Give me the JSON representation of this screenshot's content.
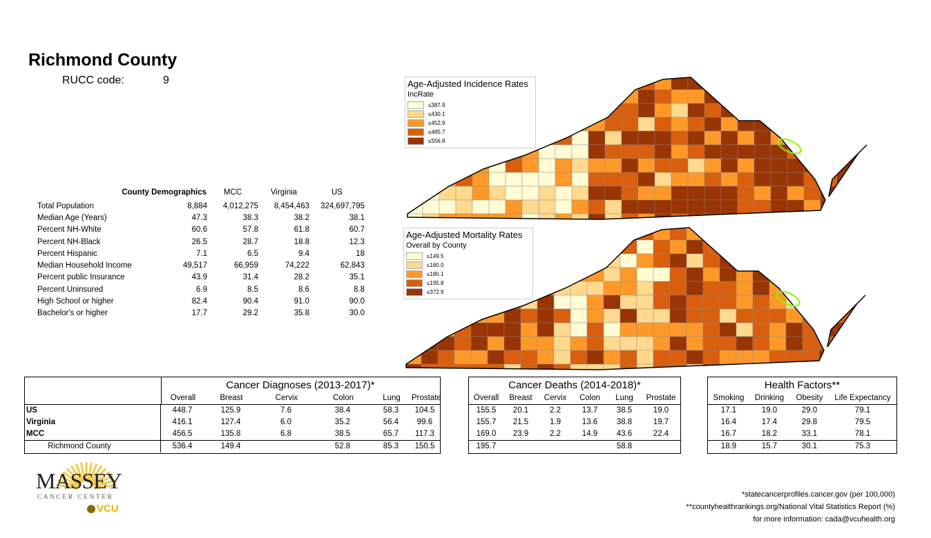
{
  "title": "Richmond County",
  "rucc": {
    "label": "RUCC code:",
    "value": "9"
  },
  "demographics": {
    "headers": [
      "County Demographics",
      "MCC",
      "Virginia",
      "US"
    ],
    "rows": [
      {
        "label": "Total Population",
        "values": [
          "8,884",
          "4,012,275",
          "8,454,463",
          "324,697,795"
        ]
      },
      {
        "label": "Median Age (Years)",
        "values": [
          "47.3",
          "38.3",
          "38.2",
          "38.1"
        ]
      },
      {
        "label": "Percent NH-White",
        "values": [
          "60.6",
          "57.8",
          "61.8",
          "60.7"
        ]
      },
      {
        "label": "Percent NH-Black",
        "values": [
          "26.5",
          "28.7",
          "18.8",
          "12.3"
        ]
      },
      {
        "label": "Percent Hispanic",
        "values": [
          "7.1",
          "6.5",
          "9.4",
          "18"
        ]
      },
      {
        "label": "Median Household Income",
        "values": [
          "49,517",
          "66,959",
          "74,222",
          "62,843"
        ]
      },
      {
        "label": "Percent public Insurance",
        "values": [
          "43.9",
          "31.4",
          "28.2",
          "35.1"
        ]
      },
      {
        "label": "Percent Uninsured",
        "values": [
          "6.9",
          "8.5",
          "8.6",
          "8.8"
        ]
      },
      {
        "label": "High School or higher",
        "values": [
          "82.4",
          "90.4",
          "91.0",
          "90.0"
        ]
      },
      {
        "label": "Bachelor's or higher",
        "values": [
          "17.7",
          "29.2",
          "35.8",
          "30.0"
        ]
      }
    ]
  },
  "maps": [
    {
      "title": "Age-Adjusted Incidence Rates",
      "subtitle": "IncRate",
      "legend": [
        {
          "label": "≤387.9",
          "color": "#fffbd5"
        },
        {
          "label": "≤430.1",
          "color": "#fed98e"
        },
        {
          "label": "≤452.9",
          "color": "#fe9929"
        },
        {
          "label": "≤485.7",
          "color": "#d95f0e"
        },
        {
          "label": "≤556.8",
          "color": "#993404"
        }
      ]
    },
    {
      "title": "Age-Adjusted Mortality Rates",
      "subtitle": "Overall by County",
      "legend": [
        {
          "label": "≤149.5",
          "color": "#fffbd5"
        },
        {
          "label": "≤160.0",
          "color": "#fed98e"
        },
        {
          "label": "≤180.1",
          "color": "#fe9929"
        },
        {
          "label": "≤195.8",
          "color": "#d95f0e"
        },
        {
          "label": "≤372.9",
          "color": "#993404"
        }
      ]
    }
  ],
  "row_labels": [
    "US",
    "Virginia",
    "MCC",
    "Richmond County"
  ],
  "diagnoses": {
    "title": "Cancer Diagnoses (2013-2017)*",
    "columns": [
      "Overall",
      "Breast",
      "Cervix",
      "Colon",
      "Lung",
      "Prostate"
    ],
    "rows": [
      [
        "448.7",
        "125.9",
        "7.6",
        "38.4",
        "58.3",
        "104.5"
      ],
      [
        "416.1",
        "127.4",
        "6.0",
        "35.2",
        "56.4",
        "99.6"
      ],
      [
        "456.5",
        "135.8",
        "6.8",
        "38.5",
        "65.7",
        "117.3"
      ],
      [
        "536.4",
        "149.4",
        "",
        "52.8",
        "85.3",
        "150.5"
      ]
    ]
  },
  "deaths": {
    "title": "Cancer Deaths (2014-2018)*",
    "columns": [
      "Overall",
      "Breast",
      "Cervix",
      "Colon",
      "Lung",
      "Prostate"
    ],
    "rows": [
      [
        "155.5",
        "20.1",
        "2.2",
        "13.7",
        "38.5",
        "19.0"
      ],
      [
        "155.7",
        "21.5",
        "1.9",
        "13.6",
        "38.8",
        "19.7"
      ],
      [
        "169.0",
        "23.9",
        "2.2",
        "14.9",
        "43.6",
        "22.4"
      ],
      [
        "195.7",
        "",
        "",
        "",
        "58.8",
        ""
      ]
    ]
  },
  "health": {
    "title": "Health Factors**",
    "columns": [
      "Smoking",
      "Drinking",
      "Obesity",
      "Life Expectancy"
    ],
    "rows": [
      [
        "17.1",
        "19.0",
        "29.0",
        "79.1"
      ],
      [
        "16.4",
        "17.4",
        "29.8",
        "79.5"
      ],
      [
        "16.7",
        "18.2",
        "33.1",
        "78.1"
      ],
      [
        "18.9",
        "15.7",
        "30.1",
        "75.3"
      ]
    ]
  },
  "logo": {
    "name": "MASSEY",
    "sub": "CANCER CENTER",
    "vcu": "VCU"
  },
  "footer": [
    "*statecancerprofiles.cancer.gov (per 100,000)",
    "**countyhealthrankings.org/National Vital Statistics Report (%)",
    "for more information: cada@vcuhealth.org"
  ]
}
